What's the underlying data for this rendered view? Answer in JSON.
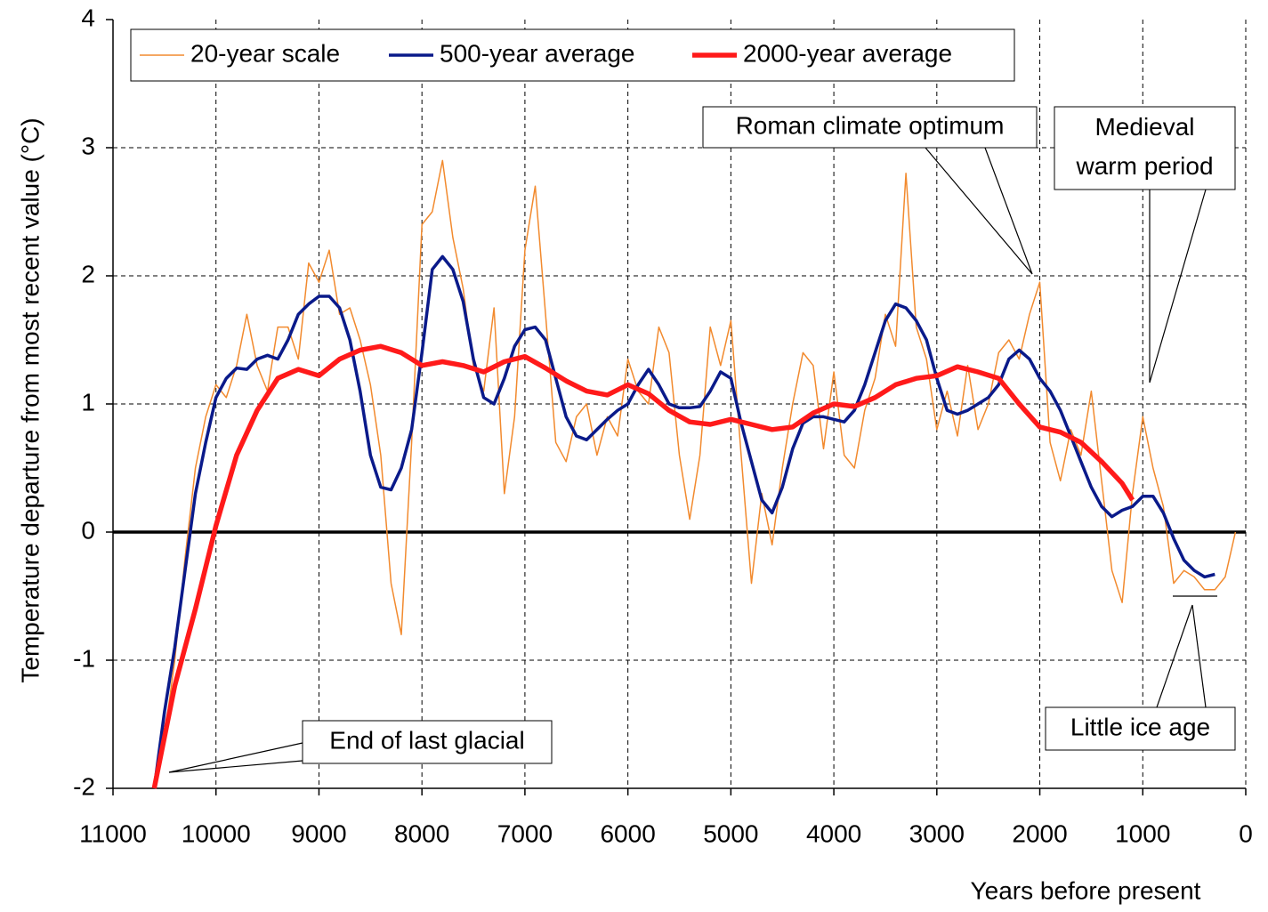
{
  "chart_data": {
    "type": "line",
    "x_label": "Years before present",
    "y_label": "Temperature departure from most recent value (°C)",
    "xlim": [
      11000,
      0
    ],
    "xticks": [
      11000,
      10000,
      9000,
      8000,
      7000,
      6000,
      5000,
      4000,
      3000,
      2000,
      1000,
      0
    ],
    "ylim": [
      -2,
      4
    ],
    "yticks": [
      -2,
      -1,
      0,
      1,
      2,
      3,
      4
    ],
    "grid": true,
    "legend": "top-left",
    "series": [
      {
        "name": "20-year scale",
        "color": "#f28a2e",
        "x": [
          10600,
          10500,
          10400,
          10300,
          10200,
          10100,
          10000,
          9900,
          9800,
          9700,
          9600,
          9500,
          9400,
          9300,
          9200,
          9100,
          9000,
          8900,
          8800,
          8700,
          8600,
          8500,
          8400,
          8300,
          8200,
          8100,
          8000,
          7900,
          7800,
          7700,
          7600,
          7500,
          7400,
          7300,
          7200,
          7100,
          7000,
          6900,
          6800,
          6700,
          6600,
          6500,
          6400,
          6300,
          6200,
          6100,
          6000,
          5900,
          5800,
          5700,
          5600,
          5500,
          5400,
          5300,
          5200,
          5100,
          5000,
          4900,
          4800,
          4700,
          4600,
          4500,
          4400,
          4300,
          4200,
          4100,
          4000,
          3900,
          3800,
          3700,
          3600,
          3500,
          3400,
          3300,
          3200,
          3100,
          3000,
          2900,
          2800,
          2700,
          2600,
          2500,
          2400,
          2300,
          2200,
          2100,
          2000,
          1900,
          1800,
          1700,
          1600,
          1500,
          1400,
          1300,
          1200,
          1100,
          1000,
          900,
          800,
          700,
          600,
          500,
          400,
          300,
          200,
          100
        ],
        "values": [
          -2,
          -1.6,
          -1.0,
          -0.2,
          0.5,
          0.9,
          1.15,
          1.05,
          1.3,
          1.7,
          1.3,
          1.1,
          1.6,
          1.6,
          1.35,
          2.1,
          1.95,
          2.2,
          1.7,
          1.75,
          1.5,
          1.15,
          0.6,
          -0.4,
          -0.8,
          0.7,
          2.4,
          2.5,
          2.9,
          2.3,
          1.9,
          1.3,
          1.1,
          1.75,
          0.3,
          0.9,
          2.2,
          2.7,
          1.7,
          0.7,
          0.55,
          0.9,
          1.0,
          0.6,
          0.9,
          0.75,
          1.35,
          1.1,
          1.0,
          1.6,
          1.4,
          0.6,
          0.1,
          0.6,
          1.6,
          1.3,
          1.65,
          0.6,
          -0.4,
          0.3,
          -0.1,
          0.5,
          1.0,
          1.4,
          1.3,
          0.65,
          1.25,
          0.6,
          0.5,
          0.95,
          1.2,
          1.7,
          1.45,
          2.8,
          1.6,
          1.35,
          0.8,
          1.1,
          0.75,
          1.3,
          0.8,
          1.0,
          1.4,
          1.5,
          1.35,
          1.7,
          1.95,
          0.7,
          0.4,
          0.8,
          0.6,
          1.1,
          0.4,
          -0.3,
          -0.55,
          0.3,
          0.9,
          0.5,
          0.2,
          -0.4,
          -0.3,
          -0.35,
          -0.45,
          -0.45,
          -0.35,
          0.0
        ]
      },
      {
        "name": "500-year average",
        "color": "#0a1a8a",
        "x": [
          10600,
          10500,
          10400,
          10300,
          10200,
          10100,
          10000,
          9900,
          9800,
          9700,
          9600,
          9500,
          9400,
          9300,
          9200,
          9100,
          9000,
          8900,
          8800,
          8700,
          8600,
          8500,
          8400,
          8300,
          8200,
          8100,
          8000,
          7900,
          7800,
          7700,
          7600,
          7500,
          7400,
          7300,
          7200,
          7100,
          7000,
          6900,
          6800,
          6700,
          6600,
          6500,
          6400,
          6300,
          6200,
          6100,
          6000,
          5900,
          5800,
          5700,
          5600,
          5500,
          5400,
          5300,
          5200,
          5100,
          5000,
          4900,
          4800,
          4700,
          4600,
          4500,
          4400,
          4300,
          4200,
          4100,
          4000,
          3900,
          3800,
          3700,
          3600,
          3500,
          3400,
          3300,
          3200,
          3100,
          3000,
          2900,
          2800,
          2700,
          2600,
          2500,
          2400,
          2300,
          2200,
          2100,
          2000,
          1900,
          1800,
          1700,
          1600,
          1500,
          1400,
          1300,
          1200,
          1100,
          1000,
          900,
          800,
          700,
          600,
          500,
          400,
          300
        ],
        "values": [
          -2,
          -1.4,
          -0.9,
          -0.3,
          0.3,
          0.7,
          1.05,
          1.2,
          1.28,
          1.27,
          1.35,
          1.38,
          1.35,
          1.5,
          1.7,
          1.78,
          1.84,
          1.84,
          1.75,
          1.5,
          1.1,
          0.6,
          0.35,
          0.33,
          0.5,
          0.8,
          1.4,
          2.05,
          2.15,
          2.05,
          1.8,
          1.35,
          1.05,
          1.0,
          1.2,
          1.45,
          1.58,
          1.6,
          1.5,
          1.2,
          0.9,
          0.75,
          0.72,
          0.8,
          0.88,
          0.95,
          1.0,
          1.15,
          1.27,
          1.15,
          1.0,
          0.97,
          0.97,
          0.98,
          1.1,
          1.25,
          1.2,
          0.85,
          0.55,
          0.25,
          0.15,
          0.35,
          0.65,
          0.85,
          0.9,
          0.9,
          0.88,
          0.86,
          0.95,
          1.15,
          1.4,
          1.65,
          1.78,
          1.75,
          1.65,
          1.5,
          1.2,
          0.95,
          0.92,
          0.95,
          1.0,
          1.05,
          1.15,
          1.35,
          1.42,
          1.35,
          1.2,
          1.1,
          0.95,
          0.75,
          0.55,
          0.35,
          0.2,
          0.12,
          0.17,
          0.2,
          0.28,
          0.28,
          0.15,
          -0.05,
          -0.22,
          -0.3,
          -0.35,
          -0.33
        ]
      },
      {
        "name": "2000-year average",
        "color": "#ff1a1a",
        "x": [
          10600,
          10400,
          10200,
          10000,
          9800,
          9600,
          9400,
          9200,
          9000,
          8800,
          8600,
          8400,
          8200,
          8000,
          7800,
          7600,
          7400,
          7200,
          7000,
          6800,
          6600,
          6400,
          6200,
          6000,
          5800,
          5600,
          5400,
          5200,
          5000,
          4800,
          4600,
          4400,
          4200,
          4000,
          3800,
          3600,
          3400,
          3200,
          3000,
          2800,
          2600,
          2400,
          2200,
          2000,
          1800,
          1600,
          1400,
          1200,
          1100
        ],
        "values": [
          -2,
          -1.2,
          -0.6,
          0.05,
          0.6,
          0.95,
          1.2,
          1.27,
          1.22,
          1.35,
          1.42,
          1.45,
          1.4,
          1.3,
          1.33,
          1.3,
          1.25,
          1.33,
          1.37,
          1.28,
          1.18,
          1.1,
          1.07,
          1.15,
          1.08,
          0.95,
          0.86,
          0.84,
          0.88,
          0.84,
          0.8,
          0.82,
          0.93,
          1.0,
          0.98,
          1.05,
          1.15,
          1.2,
          1.22,
          1.29,
          1.25,
          1.2,
          1.0,
          0.82,
          0.78,
          0.7,
          0.55,
          0.38,
          0.25
        ]
      }
    ],
    "annotations": [
      {
        "lines": [
          "Roman climate optimum"
        ]
      },
      {
        "lines": [
          "Medieval",
          "warm period"
        ]
      },
      {
        "lines": [
          "Little ice age"
        ]
      },
      {
        "lines": [
          "End of last glacial"
        ]
      }
    ]
  }
}
